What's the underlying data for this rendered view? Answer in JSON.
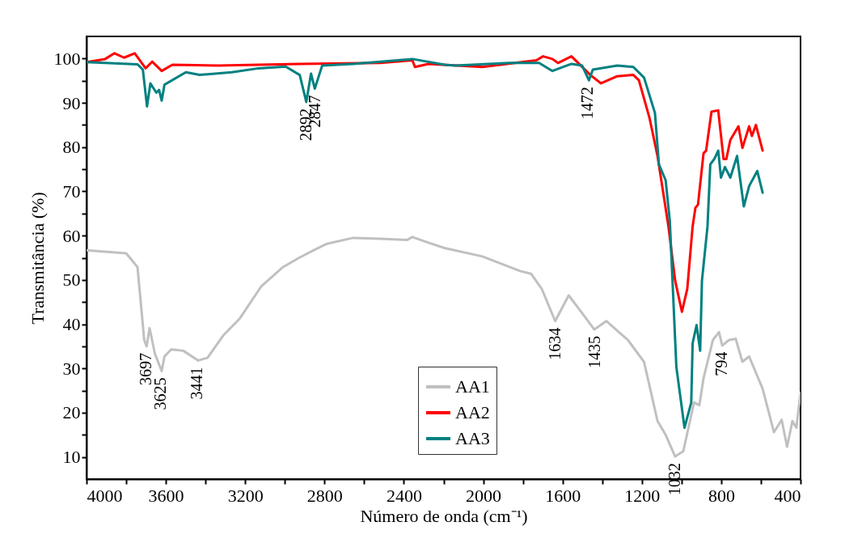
{
  "chart_data": {
    "type": "line",
    "xlabel": "Número de onda (cm⁻¹)",
    "ylabel": "Transmitância (%)",
    "xlim": [
      4000,
      400
    ],
    "ylim": [
      5,
      105
    ],
    "xticks": [
      4000,
      {
        "value": 3800,
        "label": null
      },
      3600,
      {
        "value": 3400,
        "label": null
      },
      3200,
      {
        "value": 3000,
        "label": null
      },
      2800,
      {
        "value": 2600,
        "label": null
      },
      2400,
      {
        "value": 2200,
        "label": null
      },
      2000,
      {
        "value": 1800,
        "label": null
      },
      1600,
      {
        "value": 1400,
        "label": null
      },
      1200,
      {
        "value": 1000,
        "label": null
      },
      800,
      {
        "value": 600,
        "label": null
      },
      400
    ],
    "yticks": [
      10,
      {
        "value": 15,
        "label": null
      },
      20,
      {
        "value": 25,
        "label": null
      },
      30,
      {
        "value": 35,
        "label": null
      },
      40,
      {
        "value": 45,
        "label": null
      },
      50,
      {
        "value": 55,
        "label": null
      },
      60,
      {
        "value": 65,
        "label": null
      },
      70,
      {
        "value": 75,
        "label": null
      },
      80,
      {
        "value": 85,
        "label": null
      },
      90,
      {
        "value": 95,
        "label": null
      },
      100
    ],
    "grid": false,
    "legend": "bottom",
    "line_style": "solid",
    "series": [
      {
        "name": "AA1",
        "color": "#c0c0c0",
        "x": [
          4000,
          3800,
          3743,
          3709,
          3697,
          3682,
          3655,
          3621,
          3607,
          3573,
          3512,
          3437,
          3390,
          3308,
          3227,
          3118,
          3009,
          2928,
          2846,
          2792,
          2656,
          2520,
          2384,
          2357,
          2276,
          2194,
          2004,
          1814,
          1759,
          1705,
          1637,
          1569,
          1501,
          1440,
          1379,
          1270,
          1189,
          1121,
          1080,
          1032,
          991,
          937,
          910,
          889,
          842,
          811,
          795,
          761,
          727,
          693,
          659,
          591,
          534,
          495,
          468,
          441,
          421,
          400
        ],
        "values": [
          56.7,
          56.0,
          52.9,
          36.4,
          35.0,
          39.1,
          33.3,
          29.4,
          32.7,
          34.3,
          34.0,
          31.8,
          32.4,
          37.6,
          41.3,
          48.6,
          52.9,
          55.0,
          56.9,
          58.1,
          59.5,
          59.3,
          59.0,
          59.7,
          58.4,
          57.2,
          55.3,
          52.0,
          51.4,
          48.0,
          40.7,
          46.5,
          42.5,
          38.8,
          40.7,
          36.4,
          31.5,
          18.1,
          15.0,
          10.1,
          11.3,
          22.3,
          21.7,
          27.8,
          36.4,
          38.2,
          35.2,
          36.4,
          36.7,
          31.5,
          32.7,
          25.4,
          15.6,
          18.4,
          12.3,
          18.1,
          16.6,
          24.5
        ]
      },
      {
        "name": "AA2",
        "color": "#ff0000",
        "x": [
          4000,
          3906,
          3859,
          3811,
          3757,
          3702,
          3669,
          3621,
          3567,
          3336,
          2928,
          2520,
          2357,
          2344,
          2276,
          2004,
          1732,
          1698,
          1651,
          1623,
          1555,
          1528,
          1460,
          1406,
          1324,
          1243,
          1215,
          1161,
          1121,
          1066,
          1032,
          998,
          971,
          944,
          930,
          917,
          889,
          876,
          849,
          815,
          788,
          774,
          754,
          713,
          693,
          659,
          645,
          625,
          591
        ],
        "values": [
          99.2,
          99.9,
          101.2,
          100.2,
          101.2,
          97.8,
          99.3,
          97.2,
          98.6,
          98.4,
          98.8,
          99.0,
          99.6,
          98.1,
          98.8,
          98.1,
          99.6,
          100.5,
          99.9,
          99.0,
          100.5,
          99.3,
          96.3,
          94.4,
          96.0,
          96.3,
          95.1,
          86.5,
          78.0,
          62.1,
          49.8,
          42.8,
          48.0,
          62.1,
          66.3,
          67.0,
          78.6,
          79.2,
          88.0,
          88.3,
          77.3,
          77.3,
          81.6,
          84.7,
          79.8,
          84.7,
          82.5,
          85.0,
          79.2
        ]
      },
      {
        "name": "AA3",
        "color": "#008080",
        "x": [
          4000,
          3743,
          3716,
          3695,
          3678,
          3648,
          3634,
          3621,
          3607,
          3499,
          3430,
          3267,
          3132,
          2996,
          2925,
          2892,
          2868,
          2849,
          2812,
          2656,
          2357,
          2194,
          2140,
          1868,
          1718,
          1651,
          1555,
          1501,
          1467,
          1447,
          1324,
          1243,
          1189,
          1134,
          1114,
          1080,
          1059,
          1026,
          985,
          951,
          944,
          924,
          906,
          897,
          869,
          855,
          835,
          815,
          801,
          781,
          754,
          720,
          686,
          659,
          618,
          591
        ],
        "values": [
          99.2,
          98.7,
          97.5,
          89.2,
          94.4,
          92.3,
          92.9,
          90.5,
          94.1,
          96.9,
          96.3,
          96.9,
          97.8,
          98.2,
          96.3,
          90.2,
          96.6,
          93.2,
          98.4,
          98.8,
          99.9,
          98.6,
          98.4,
          99.0,
          99.0,
          97.2,
          98.8,
          98.4,
          95.1,
          97.5,
          98.4,
          98.1,
          95.7,
          87.7,
          76.1,
          72.5,
          63.3,
          30.3,
          16.6,
          22.3,
          35.7,
          39.8,
          34.0,
          49.8,
          62.1,
          76.1,
          77.3,
          79.2,
          73.1,
          75.5,
          73.1,
          78.0,
          66.6,
          71.2,
          74.6,
          69.7
        ]
      }
    ],
    "annotations": [
      {
        "text": "3697",
        "x": 3697,
        "y": 35.0
      },
      {
        "text": "3625",
        "x": 3625,
        "y": 29.4
      },
      {
        "text": "3441",
        "x": 3441,
        "y": 31.8
      },
      {
        "text": "2892",
        "x": 2892,
        "y": 90.2
      },
      {
        "text": "2847",
        "x": 2847,
        "y": 93.2
      },
      {
        "text": "1634",
        "x": 1634,
        "y": 40.7
      },
      {
        "text": "1472",
        "x": 1472,
        "y": 95.1
      },
      {
        "text": "1435",
        "x": 1435,
        "y": 38.8
      },
      {
        "text": "1032",
        "x": 1032,
        "y": 10.1
      },
      {
        "text": "794",
        "x": 794,
        "y": 35.2
      }
    ]
  }
}
